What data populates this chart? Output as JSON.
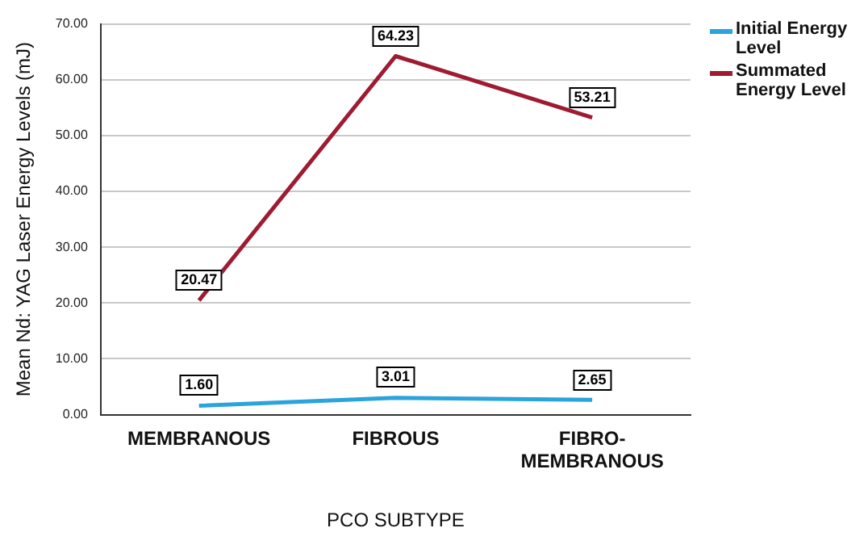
{
  "chart_data": {
    "type": "line",
    "xlabel": "PCO SUBTYPE",
    "ylabel": "Mean Nd: YAG Laser Energy Levels (mJ)",
    "categories": [
      "MEMBRANOUS",
      "FIBROUS",
      "FIBRO-MEMBRANOUS"
    ],
    "series": [
      {
        "name": "Initial Energy Level",
        "color": "#2ba3dc",
        "values": [
          1.6,
          3.01,
          2.65
        ],
        "value_labels": [
          "1.60",
          "3.01",
          "2.65"
        ]
      },
      {
        "name": "Summated Energy Level",
        "color": "#9e1b32",
        "values": [
          20.47,
          64.23,
          53.21
        ],
        "value_labels": [
          "20.47",
          "64.23",
          "53.21"
        ]
      }
    ],
    "ylim": [
      0,
      70
    ],
    "yticks": [
      {
        "value": 0,
        "label": "0.00"
      },
      {
        "value": 10,
        "label": "10.00"
      },
      {
        "value": 20,
        "label": "20.00"
      },
      {
        "value": 30,
        "label": "30.00"
      },
      {
        "value": 40,
        "label": "40.00"
      },
      {
        "value": 50,
        "label": "50.00"
      },
      {
        "value": 60,
        "label": "60.00"
      },
      {
        "value": 70,
        "label": "70.00"
      }
    ],
    "grid": "y",
    "legend": "right",
    "marker": "none",
    "line_style": "solid"
  }
}
